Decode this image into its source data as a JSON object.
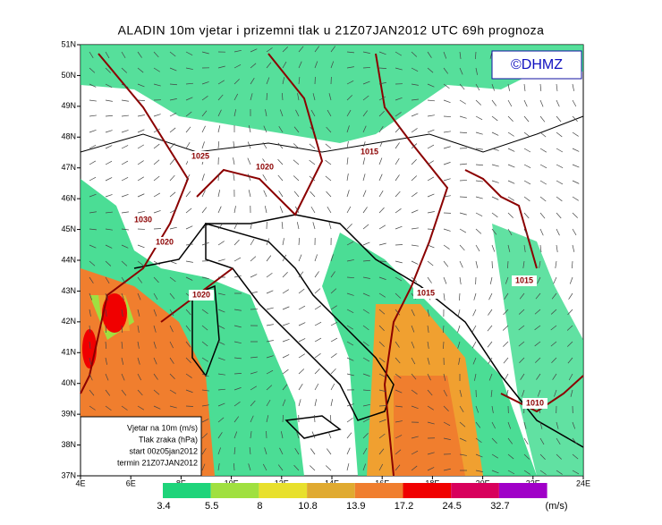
{
  "header": {
    "title": "ALADIN 10m vjetar i prizemni tlak u 21Z07JAN2012 UTC 69h prognoza",
    "logo": "©DHMZ"
  },
  "axes": {
    "lat_labels": [
      "51N",
      "50N",
      "49N",
      "48N",
      "47N",
      "46N",
      "45N",
      "44N",
      "43N",
      "42N",
      "41N",
      "40N",
      "39N",
      "38N",
      "37N"
    ],
    "lon_labels": [
      "4E",
      "6E",
      "8E",
      "10E",
      "12E",
      "14E",
      "16E",
      "18E",
      "20E",
      "22E",
      "24E"
    ]
  },
  "isobar_labels": [
    "1025",
    "1020",
    "1015",
    "1030",
    "1020",
    "1020",
    "1015",
    "1015",
    "1010"
  ],
  "legend_box": {
    "lines": [
      "Vjetar na 10m (m/s)",
      "Tlak zraka (hPa)",
      "start 00z05jan2012",
      "termin 21Z07JAN2012"
    ]
  },
  "colorbar": {
    "labels": [
      "3.4",
      "5.5",
      "8",
      "10.8",
      "13.9",
      "17.2",
      "24.5",
      "32.7"
    ],
    "unit": "(m/s)",
    "colors": [
      "#1ed47a",
      "#a0e040",
      "#e8e02c",
      "#e0aa30",
      "#f07e2e",
      "#f00000",
      "#d8005c",
      "#a000c8"
    ]
  }
}
